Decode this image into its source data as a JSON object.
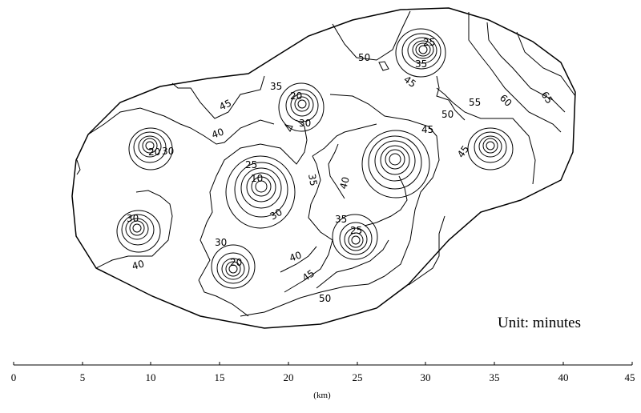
{
  "map": {
    "unit_note": "Unit: minutes",
    "scale": {
      "unit_label": "(km)",
      "ticks": [
        "0",
        "5",
        "10",
        "15",
        "20",
        "25",
        "30",
        "35",
        "40",
        "45"
      ]
    },
    "contour_labels": [
      {
        "id": "50-top",
        "text": "50"
      },
      {
        "id": "25-ne",
        "text": "25"
      },
      {
        "id": "35-ne",
        "text": "35"
      },
      {
        "id": "45-ne",
        "text": "45"
      },
      {
        "id": "65",
        "text": "65"
      },
      {
        "id": "60",
        "text": "60"
      },
      {
        "id": "55",
        "text": "55"
      },
      {
        "id": "50-mid",
        "text": "50"
      },
      {
        "id": "45-mid",
        "text": "45"
      },
      {
        "id": "45-east",
        "text": "45"
      },
      {
        "id": "35-n",
        "text": "35"
      },
      {
        "id": "20-n",
        "text": "20"
      },
      {
        "id": "30-n",
        "text": "30"
      },
      {
        "id": "45-nw",
        "text": "45"
      },
      {
        "id": "40-nw",
        "text": "40"
      },
      {
        "id": "20-w",
        "text": "20"
      },
      {
        "id": "30-w",
        "text": "30"
      },
      {
        "id": "25-c",
        "text": "25"
      },
      {
        "id": "10-c",
        "text": "10"
      },
      {
        "id": "35-c",
        "text": "35"
      },
      {
        "id": "40-c",
        "text": "40"
      },
      {
        "id": "30-c",
        "text": "30"
      },
      {
        "id": "30-sw",
        "text": "30"
      },
      {
        "id": "40-sw",
        "text": "40"
      },
      {
        "id": "30-s",
        "text": "30"
      },
      {
        "id": "20-s",
        "text": "20"
      },
      {
        "id": "35-se",
        "text": "35"
      },
      {
        "id": "25-se",
        "text": "25"
      },
      {
        "id": "40-se",
        "text": "40"
      },
      {
        "id": "45-se",
        "text": "45"
      },
      {
        "id": "50-s",
        "text": "50"
      }
    ]
  }
}
